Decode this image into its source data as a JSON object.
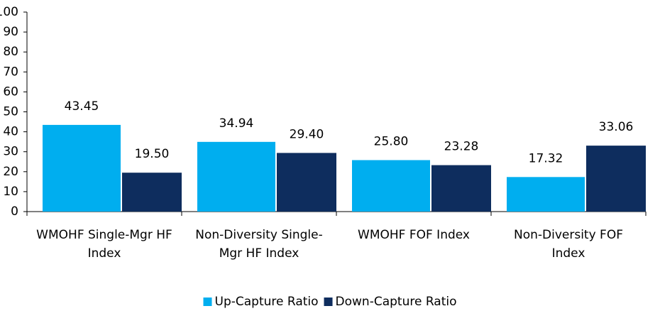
{
  "chart_data": {
    "type": "bar",
    "categories": [
      "WMOHF Single-Mgr HF Index",
      "Non-Diversity Single-Mgr HF Index",
      "WMOHF FOF Index",
      "Non-Diversity FOF Index"
    ],
    "series": [
      {
        "name": "Up-Capture Ratio",
        "color": "#00aeef",
        "values": [
          43.45,
          34.94,
          25.8,
          17.32
        ],
        "value_labels": [
          "43.45",
          "34.94",
          "25.80",
          "17.32"
        ]
      },
      {
        "name": "Down-Capture Ratio",
        "color": "#0e2d5e",
        "values": [
          19.5,
          29.4,
          23.28,
          33.06
        ],
        "value_labels": [
          "19.50",
          "29.40",
          "23.28",
          "33.06"
        ]
      }
    ],
    "ylim": [
      0,
      100
    ],
    "yticks": [
      0,
      10,
      20,
      30,
      40,
      50,
      60,
      70,
      80,
      90,
      100
    ],
    "legend": "bottom"
  }
}
